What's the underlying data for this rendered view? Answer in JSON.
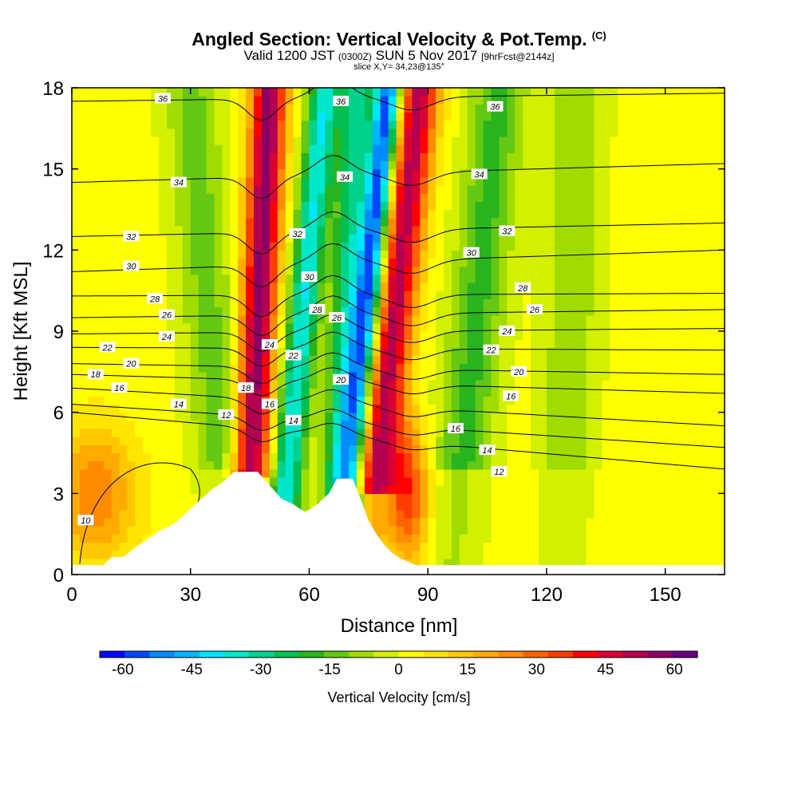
{
  "title": {
    "main": "Angled Section: Vertical Velocity & Pot.Temp.",
    "main_suffix": "(C)",
    "valid_prefix": "Valid 1200 JST",
    "valid_utc": "(0300Z)",
    "valid_date": "SUN 5 Nov 2017",
    "forecast": "[9hrFcst@2144z]",
    "slice": "slice X,Y= 34,23@135°"
  },
  "chart_data": {
    "type": "heatmap",
    "xlabel": "Distance [nm]",
    "ylabel": "Height [Kft MSL]",
    "xlim": [
      0,
      165
    ],
    "ylim": [
      0,
      18
    ],
    "x_ticks": [
      0,
      30,
      60,
      90,
      120,
      150
    ],
    "y_ticks": [
      0,
      3,
      6,
      9,
      12,
      15,
      18
    ],
    "grid": false,
    "colorbar": {
      "title": "Vertical Velocity [cm/s]",
      "range": [
        -65,
        65
      ],
      "tick_values": [
        -60,
        -45,
        -30,
        -15,
        0,
        15,
        30,
        45,
        60
      ],
      "tick_labels": [
        "-60",
        "-45",
        "-30",
        "-15",
        "0",
        "15",
        "30",
        "45",
        "60"
      ],
      "colors": [
        "#0000ff",
        "#0047ff",
        "#008cff",
        "#00b4ff",
        "#00e6ff",
        "#00e6c8",
        "#00d28c",
        "#00be50",
        "#28b41e",
        "#64c814",
        "#a0dc00",
        "#d2f000",
        "#ffff00",
        "#ffe600",
        "#ffc800",
        "#ffaa00",
        "#ff8c00",
        "#ff6400",
        "#ff3c00",
        "#ff0000",
        "#dc0032",
        "#b40050",
        "#8c0064",
        "#640080"
      ],
      "placement": "bottom"
    },
    "terrain_profile": [
      [
        0,
        0.35
      ],
      [
        8,
        0.35
      ],
      [
        10,
        0.65
      ],
      [
        13,
        0.65
      ],
      [
        16,
        1.0
      ],
      [
        19,
        1.3
      ],
      [
        22,
        1.6
      ],
      [
        26,
        1.9
      ],
      [
        29,
        2.3
      ],
      [
        32,
        2.7
      ],
      [
        35,
        3.1
      ],
      [
        38,
        3.4
      ],
      [
        41,
        3.8
      ],
      [
        47,
        3.8
      ],
      [
        50,
        3.3
      ],
      [
        53,
        2.8
      ],
      [
        56,
        2.6
      ],
      [
        59,
        2.3
      ],
      [
        62,
        2.6
      ],
      [
        65,
        3.0
      ],
      [
        67,
        3.55
      ],
      [
        71,
        3.55
      ],
      [
        73,
        2.8
      ],
      [
        75,
        2.0
      ],
      [
        77,
        1.5
      ],
      [
        79,
        1.1
      ],
      [
        81,
        0.8
      ],
      [
        83,
        0.6
      ],
      [
        87,
        0.35
      ],
      [
        165,
        0.35
      ]
    ],
    "updraft_bands": [
      {
        "name": "red-band-1",
        "x_top": 50,
        "x_bottom": 44,
        "peak": 55
      },
      {
        "name": "red-band-2",
        "x_top": 88,
        "x_bottom": 74,
        "peak": 50
      },
      {
        "name": "orange-low",
        "x_top": 6,
        "x_bottom": 6,
        "peak": 25
      },
      {
        "name": "orange-lee",
        "x_top": 85,
        "x_bottom": 85,
        "peak": 35
      }
    ],
    "downdraft_bands": [
      {
        "name": "blue-band-1",
        "x_top": 80,
        "x_bottom": 68,
        "peak": -60
      },
      {
        "name": "cyan-band-1",
        "x_top": 64,
        "x_bottom": 52,
        "peak": -40
      },
      {
        "name": "cyan-band-2",
        "x_top": 72,
        "x_bottom": 66,
        "peak": -30
      },
      {
        "name": "green-band-1",
        "x_top": 30,
        "x_bottom": 40,
        "peak": -15
      },
      {
        "name": "green-band-2",
        "x_top": 108,
        "x_bottom": 96,
        "peak": -20
      },
      {
        "name": "green-band-3",
        "x_top": 128,
        "x_bottom": 124,
        "peak": -12
      }
    ],
    "isentropes": [
      {
        "theta": "10",
        "y_left": 3.0,
        "shape": "lobe"
      },
      {
        "theta": "12",
        "y_left": 6.0,
        "y_right": 3.9
      },
      {
        "theta": "14",
        "y_left": 6.3,
        "y_right": 4.7
      },
      {
        "theta": "16",
        "y_left": 6.9,
        "y_right": 5.5
      },
      {
        "theta": "18",
        "y_left": 7.4,
        "y_right": 6.7
      },
      {
        "theta": "20",
        "y_left": 7.8,
        "y_right": 7.4
      },
      {
        "theta": "22",
        "y_left": 8.4,
        "y_right": 8.3
      },
      {
        "theta": "24",
        "y_left": 8.9,
        "y_right": 9.1
      },
      {
        "theta": "26",
        "y_left": 9.5,
        "y_right": 9.8
      },
      {
        "theta": "28",
        "y_left": 10.3,
        "y_right": 10.4
      },
      {
        "theta": "30",
        "y_left": 11.2,
        "y_right": 12.0
      },
      {
        "theta": "32",
        "y_left": 12.5,
        "y_right": 13.0
      },
      {
        "theta": "34",
        "y_left": 14.5,
        "y_right": 15.2
      },
      {
        "theta": "36",
        "y_left": 17.5,
        "y_right": 17.8
      }
    ],
    "contour_labels": [
      {
        "text": "36",
        "x": 23,
        "y": 17.6
      },
      {
        "text": "36",
        "x": 68,
        "y": 17.5
      },
      {
        "text": "36",
        "x": 107,
        "y": 17.3
      },
      {
        "text": "34",
        "x": 27,
        "y": 14.5
      },
      {
        "text": "34",
        "x": 69,
        "y": 14.7
      },
      {
        "text": "34",
        "x": 103,
        "y": 14.8
      },
      {
        "text": "32",
        "x": 15,
        "y": 12.5
      },
      {
        "text": "32",
        "x": 57,
        "y": 12.6
      },
      {
        "text": "32",
        "x": 110,
        "y": 12.7
      },
      {
        "text": "30",
        "x": 15,
        "y": 11.4
      },
      {
        "text": "30",
        "x": 60,
        "y": 11.0
      },
      {
        "text": "30",
        "x": 101,
        "y": 11.9
      },
      {
        "text": "28",
        "x": 21,
        "y": 10.2
      },
      {
        "text": "28",
        "x": 62,
        "y": 9.8
      },
      {
        "text": "28",
        "x": 114,
        "y": 10.6
      },
      {
        "text": "26",
        "x": 24,
        "y": 9.6
      },
      {
        "text": "26",
        "x": 67,
        "y": 9.5
      },
      {
        "text": "26",
        "x": 117,
        "y": 9.8
      },
      {
        "text": "24",
        "x": 24,
        "y": 8.8
      },
      {
        "text": "24",
        "x": 50,
        "y": 8.5
      },
      {
        "text": "24",
        "x": 110,
        "y": 9.0
      },
      {
        "text": "22",
        "x": 9,
        "y": 8.4
      },
      {
        "text": "22",
        "x": 56,
        "y": 8.1
      },
      {
        "text": "22",
        "x": 106,
        "y": 8.3
      },
      {
        "text": "20",
        "x": 15,
        "y": 7.8
      },
      {
        "text": "20",
        "x": 68,
        "y": 7.2
      },
      {
        "text": "20",
        "x": 113,
        "y": 7.5
      },
      {
        "text": "18",
        "x": 6,
        "y": 7.4
      },
      {
        "text": "18",
        "x": 44,
        "y": 6.9
      },
      {
        "text": "16",
        "x": 12,
        "y": 6.9
      },
      {
        "text": "16",
        "x": 50,
        "y": 6.3
      },
      {
        "text": "16",
        "x": 111,
        "y": 6.6
      },
      {
        "text": "16",
        "x": 97,
        "y": 5.4
      },
      {
        "text": "14",
        "x": 27,
        "y": 6.3
      },
      {
        "text": "14",
        "x": 56,
        "y": 5.7
      },
      {
        "text": "14",
        "x": 105,
        "y": 4.6
      },
      {
        "text": "12",
        "x": 39,
        "y": 5.9
      },
      {
        "text": "12",
        "x": 108,
        "y": 3.8
      },
      {
        "text": "10",
        "x": 3.5,
        "y": 2.0
      }
    ]
  }
}
